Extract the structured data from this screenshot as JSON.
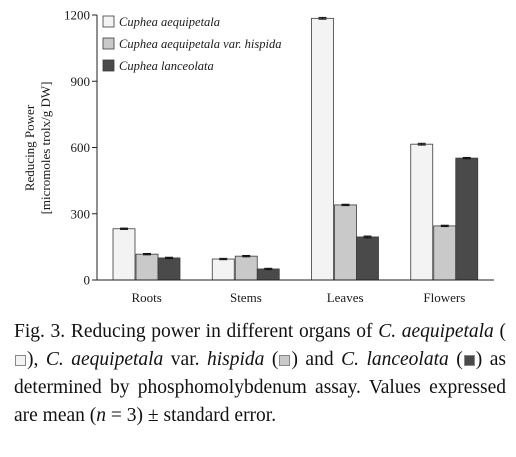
{
  "chart_data": {
    "type": "bar",
    "categories": [
      "Roots",
      "Stems",
      "Leaves",
      "Flowers"
    ],
    "series": [
      {
        "name": "Cuphea aequipetala",
        "values": [
          232,
          95,
          1185,
          615
        ],
        "errors": [
          3,
          3,
          4,
          4
        ],
        "color": "#f3f3f3"
      },
      {
        "name": "Cuphea aequipetala var. hispida",
        "values": [
          117,
          108,
          340,
          245
        ],
        "errors": [
          3,
          3,
          3,
          3
        ],
        "color": "#c9c9c9"
      },
      {
        "name": "Cuphea lanceolata",
        "values": [
          100,
          50,
          195,
          552
        ],
        "errors": [
          3,
          3,
          4,
          3
        ],
        "color": "#4a4a4a"
      }
    ],
    "ylabel_line1": "Reducing Power",
    "ylabel_line2": "[micromoles trolx/g DW]",
    "ylim": [
      0,
      1200
    ],
    "yticks": [
      "0",
      "300",
      "600",
      "900",
      "1200"
    ],
    "legend_position": "top-left",
    "grid": false
  },
  "caption": {
    "fig_label": "Fig. 3.",
    "text1": " Reducing power in different organs of ",
    "sp1": "C. aequipetala",
    "text2": " (",
    "text3": "), ",
    "sp2a": "C. aequipetala",
    "var": " var. ",
    "sp2b": "hispida",
    "text4": " (",
    "text5": ") and ",
    "sp3": "C. lanceolata",
    "text6": " (",
    "text7": ") as determined by phosphomolybdenum assay. Values expressed are mean (",
    "n_var": "n",
    "text8": " = 3) ± standard error."
  }
}
